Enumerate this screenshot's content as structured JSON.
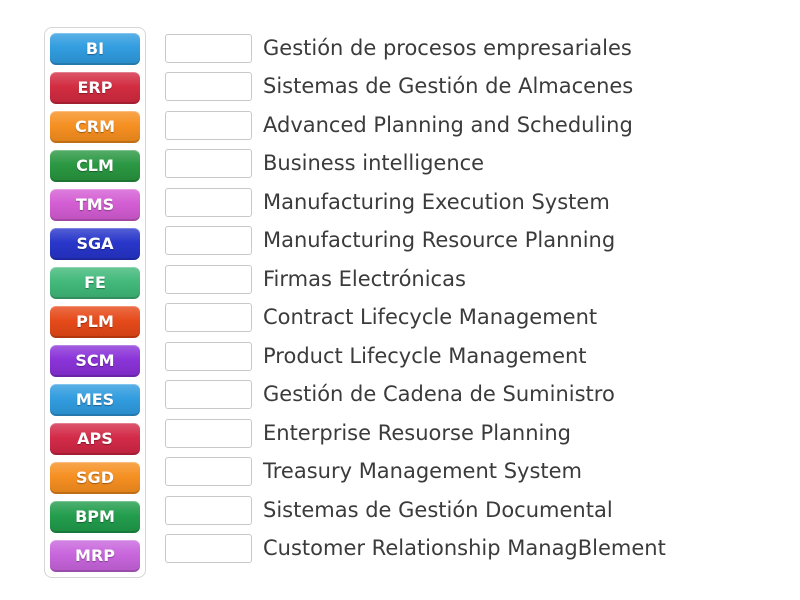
{
  "page": {
    "background_color": "#ffffff",
    "text_color": "#3b3b3b"
  },
  "board": {
    "tiles": [
      {
        "label": "BI",
        "color": "#2E9BDF"
      },
      {
        "label": "ERP",
        "color": "#D2293E"
      },
      {
        "label": "CRM",
        "color": "#F68E1E"
      },
      {
        "label": "CLM",
        "color": "#27963F"
      },
      {
        "label": "TMS",
        "color": "#D35BD3"
      },
      {
        "label": "SGA",
        "color": "#2533C9"
      },
      {
        "label": "FE",
        "color": "#3FB878"
      },
      {
        "label": "PLM",
        "color": "#E64716"
      },
      {
        "label": "SCM",
        "color": "#8930D8"
      },
      {
        "label": "MES",
        "color": "#2E9BDF"
      },
      {
        "label": "APS",
        "color": "#D22745"
      },
      {
        "label": "SGD",
        "color": "#F68E1E"
      },
      {
        "label": "BPM",
        "color": "#1F9B4A"
      },
      {
        "label": "MRP",
        "color": "#C763DC"
      }
    ],
    "definitions": [
      {
        "text": "Gestión de procesos empresariales"
      },
      {
        "text": "Sistemas de Gestión de Almacenes"
      },
      {
        "text": "Advanced Planning and Scheduling"
      },
      {
        "text": "Business intelligence"
      },
      {
        "text": "Manufacturing Execution System"
      },
      {
        "text": "Manufacturing Resource Planning"
      },
      {
        "text": "Firmas Electrónicas"
      },
      {
        "text": "Contract Lifecycle Management"
      },
      {
        "text": "Product Lifecycle Management"
      },
      {
        "text": "Gestión de Cadena de Suministro"
      },
      {
        "text": "Enterprise Resuorse Planning"
      },
      {
        "text": "Treasury Management System"
      },
      {
        "text": "Sistemas de Gestión Documental"
      },
      {
        "text": "Customer Relationship ManagBlement"
      }
    ]
  }
}
